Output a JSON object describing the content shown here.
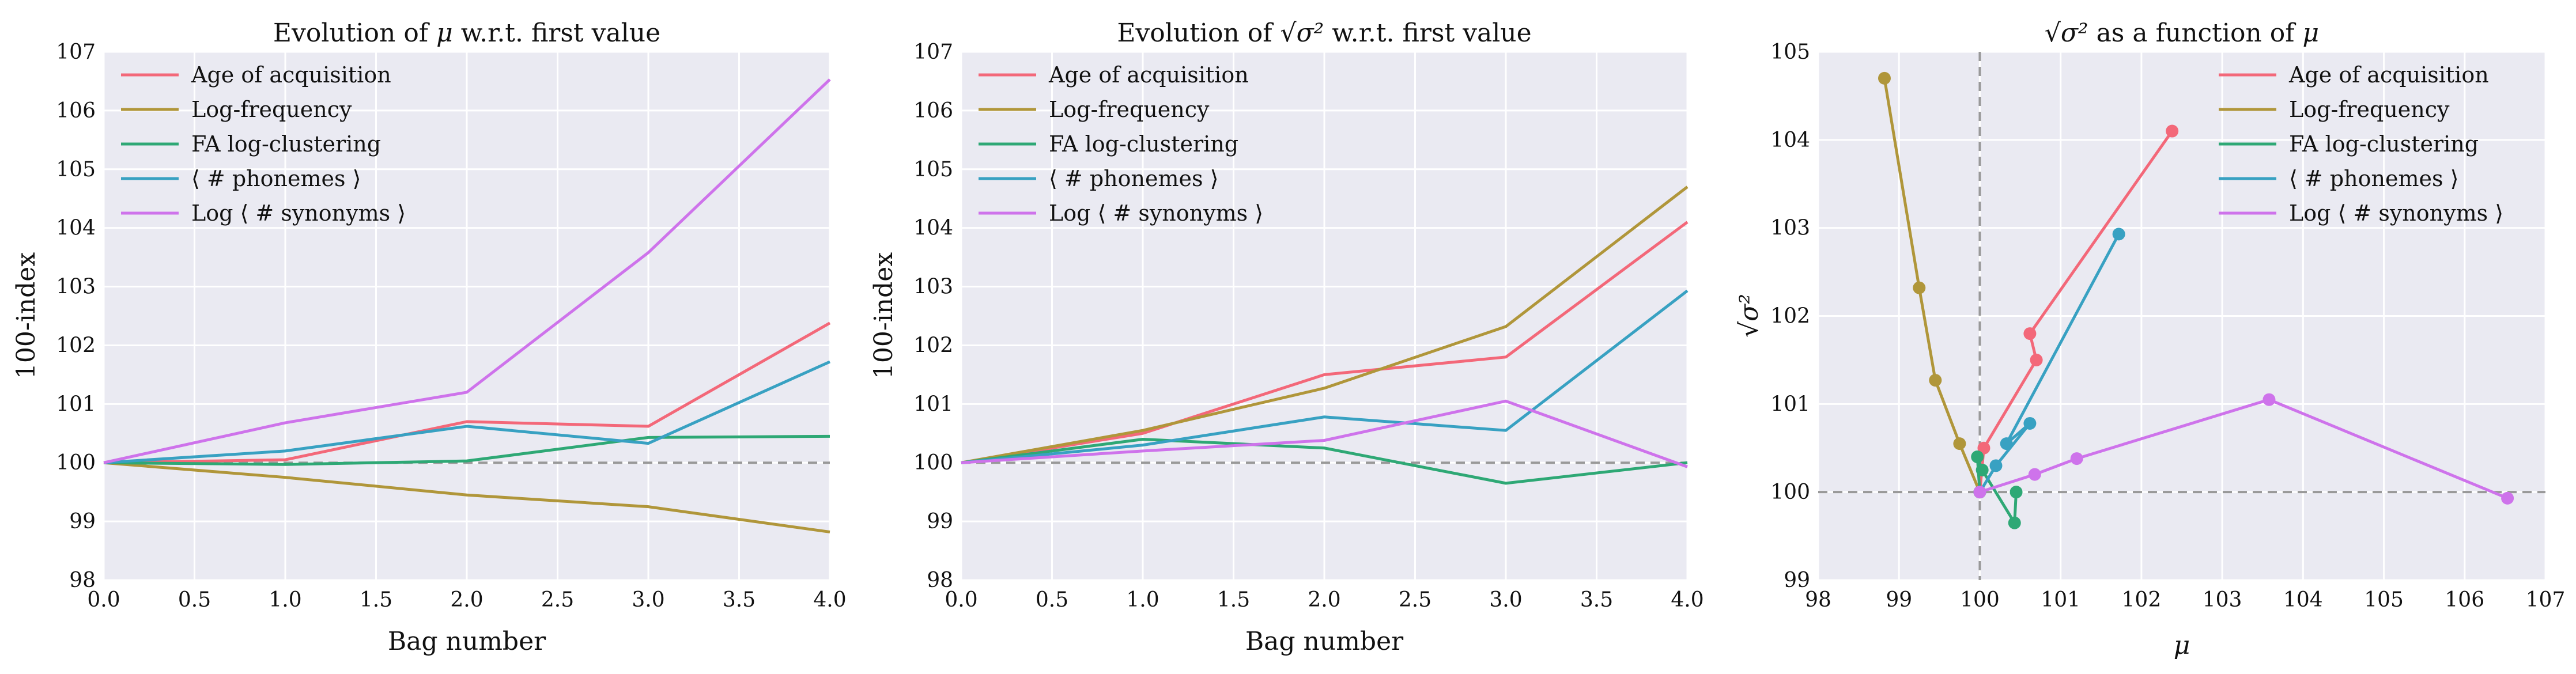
{
  "style": {
    "panel_bg": "#EAEAF2",
    "grid": "#FFFFFF",
    "ref_line": "#999999",
    "colors": [
      "#F36879",
      "#B0963A",
      "#2EA875",
      "#38A1C2",
      "#CE73EB"
    ]
  },
  "legend_labels": [
    "Age of acquisition",
    "Log-frequency",
    "FA log-clustering",
    "⟨ # phonemes ⟩",
    "Log ⟨ # synonyms ⟩"
  ],
  "chart_data": [
    {
      "type": "line",
      "title_parts": [
        "Evolution of ",
        "μ",
        " w.r.t. first value"
      ],
      "xlabel": "Bag number",
      "ylabel": "100-index",
      "xlim": [
        0,
        4
      ],
      "ylim": [
        98,
        107
      ],
      "xticks": [
        "0.0",
        "0.5",
        "1.0",
        "1.5",
        "2.0",
        "2.5",
        "3.0",
        "3.5",
        "4.0"
      ],
      "yticks": [
        "98",
        "99",
        "100",
        "101",
        "102",
        "103",
        "104",
        "105",
        "106",
        "107"
      ],
      "reference_y": 100,
      "legend_position": "top-left",
      "x": [
        0,
        1,
        2,
        3,
        4
      ],
      "series": [
        {
          "name": "Age of acquisition",
          "values": [
            100,
            100.05,
            100.7,
            100.62,
            102.38
          ]
        },
        {
          "name": "Log-frequency",
          "values": [
            100,
            99.75,
            99.45,
            99.25,
            98.82
          ]
        },
        {
          "name": "FA log-clustering",
          "values": [
            100,
            99.97,
            100.03,
            100.43,
            100.45
          ]
        },
        {
          "name": "⟨ # phonemes ⟩",
          "values": [
            100,
            100.2,
            100.62,
            100.33,
            101.72
          ]
        },
        {
          "name": "Log ⟨ # synonyms ⟩",
          "values": [
            100,
            100.68,
            101.2,
            103.58,
            106.53
          ]
        }
      ]
    },
    {
      "type": "line",
      "title_parts": [
        "Evolution of ",
        "√σ²",
        " w.r.t. first value"
      ],
      "xlabel": "Bag number",
      "ylabel": "100-index",
      "xlim": [
        0,
        4
      ],
      "ylim": [
        98,
        107
      ],
      "xticks": [
        "0.0",
        "0.5",
        "1.0",
        "1.5",
        "2.0",
        "2.5",
        "3.0",
        "3.5",
        "4.0"
      ],
      "yticks": [
        "98",
        "99",
        "100",
        "101",
        "102",
        "103",
        "104",
        "105",
        "106",
        "107"
      ],
      "reference_y": 100,
      "legend_position": "top-left",
      "x": [
        0,
        1,
        2,
        3,
        4
      ],
      "series": [
        {
          "name": "Age of acquisition",
          "values": [
            100,
            100.5,
            101.5,
            101.8,
            104.1
          ]
        },
        {
          "name": "Log-frequency",
          "values": [
            100,
            100.55,
            101.27,
            102.32,
            104.7
          ]
        },
        {
          "name": "FA log-clustering",
          "values": [
            100,
            100.4,
            100.25,
            99.65,
            100
          ]
        },
        {
          "name": "⟨ # phonemes ⟩",
          "values": [
            100,
            100.3,
            100.78,
            100.55,
            102.93
          ]
        },
        {
          "name": "Log ⟨ # synonyms ⟩",
          "values": [
            100,
            100.2,
            100.38,
            101.05,
            99.93
          ]
        }
      ]
    },
    {
      "type": "scatter",
      "title_parts": [
        "√σ²",
        " as a function of ",
        "μ"
      ],
      "xlabel": "μ",
      "ylabel": "√σ²",
      "xlim": [
        98,
        107
      ],
      "ylim": [
        99,
        105
      ],
      "xticks": [
        "98",
        "99",
        "100",
        "101",
        "102",
        "103",
        "104",
        "105",
        "106",
        "107"
      ],
      "yticks": [
        "99",
        "100",
        "101",
        "102",
        "103",
        "104",
        "105"
      ],
      "reference_x": 100,
      "reference_y": 100,
      "legend_position": "top-right",
      "series": [
        {
          "name": "Age of acquisition",
          "x": [
            100,
            100.05,
            100.7,
            100.62,
            102.38
          ],
          "y": [
            100,
            100.5,
            101.5,
            101.8,
            104.1
          ]
        },
        {
          "name": "Log-frequency",
          "x": [
            100,
            99.75,
            99.45,
            99.25,
            98.82
          ],
          "y": [
            100,
            100.55,
            101.27,
            102.32,
            104.7
          ]
        },
        {
          "name": "FA log-clustering",
          "x": [
            100,
            99.97,
            100.03,
            100.43,
            100.45
          ],
          "y": [
            100,
            100.4,
            100.25,
            99.65,
            100
          ]
        },
        {
          "name": "⟨ # phonemes ⟩",
          "x": [
            100,
            100.2,
            100.62,
            100.33,
            101.72
          ],
          "y": [
            100,
            100.3,
            100.78,
            100.55,
            102.93
          ]
        },
        {
          "name": "Log ⟨ # synonyms ⟩",
          "x": [
            100,
            100.68,
            101.2,
            103.58,
            106.53
          ],
          "y": [
            100,
            100.2,
            100.38,
            101.05,
            99.93
          ]
        }
      ]
    }
  ]
}
